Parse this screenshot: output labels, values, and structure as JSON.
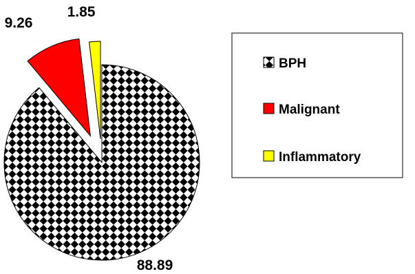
{
  "chart_data": {
    "type": "pie",
    "exploded": true,
    "categories": [
      "BPH",
      "Malignant",
      "Inflammatory"
    ],
    "values": [
      88.89,
      9.26,
      1.85
    ],
    "data_labels": [
      "88.89",
      "9.26",
      "1.85"
    ],
    "colors": {
      "BPH": "checkerboard-black-white",
      "Malignant": "#ff0000",
      "Inflammatory": "#ffff00"
    },
    "legend": {
      "placement": "right",
      "entries": [
        "BPH",
        "Malignant",
        "Inflammatory"
      ]
    },
    "title": "",
    "start_angle_deg": 0,
    "direction": "clockwise"
  }
}
